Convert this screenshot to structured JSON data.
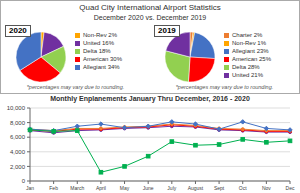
{
  "title": "Quad City International Airport Statistics",
  "subtitle": "December 2020 vs. December 2019",
  "chart_data": [
    {
      "type": "pie",
      "title": "2020",
      "categories": [
        "Non-Rev 2%",
        "United 16%",
        "Delta 18%",
        "American 30%",
        "Allegiant 34%"
      ],
      "values": [
        2,
        16,
        18,
        30,
        34
      ],
      "colors": [
        "#FFA500",
        "#7030A0",
        "#92D050",
        "#FF0000",
        "#4472C4"
      ],
      "annotations": [
        "*percentages may vary due to rounding."
      ]
    },
    {
      "type": "pie",
      "title": "2019",
      "categories": [
        "Charter 2%",
        "Non-Rev 1%",
        "Allegiant 23%",
        "American 25%",
        "Delta 28%",
        "United 21%"
      ],
      "values": [
        2,
        1,
        23,
        25,
        28,
        21
      ],
      "colors": [
        "#ED7D31",
        "#FFA500",
        "#4472C4",
        "#FF0000",
        "#92D050",
        "#7030A0"
      ],
      "annotations": [
        "*percentages may vary due to rounding."
      ]
    },
    {
      "type": "line",
      "title": "Monthly Enplanements January Thru December, 2016 - 2020",
      "categories": [
        "Jan",
        "Feb",
        "March",
        "April",
        "May",
        "June",
        "July",
        "August",
        "Sept",
        "Oct",
        "Nov",
        "Dec"
      ],
      "series": [
        {
          "color": "#7030A0",
          "marker": "circle",
          "values": [
            6900,
            6600,
            6900,
            7000,
            7200,
            7300,
            7500,
            7400,
            7000,
            6900,
            6700,
            6700
          ]
        },
        {
          "color": "#FF0000",
          "marker": "circle",
          "values": [
            7000,
            6800,
            7100,
            7100,
            7300,
            7400,
            7700,
            7500,
            7100,
            7000,
            6800,
            6800
          ]
        },
        {
          "color": "#ED7D31",
          "marker": "circle",
          "values": [
            7100,
            6900,
            7200,
            7200,
            7400,
            7500,
            7800,
            7600,
            7200,
            7100,
            6900,
            6900
          ]
        },
        {
          "color": "#4472C4",
          "marker": "diamond",
          "values": [
            7100,
            6900,
            7500,
            7800,
            7300,
            7500,
            8100,
            7800,
            7100,
            8100,
            7200,
            7000
          ]
        },
        {
          "color": "#00B050",
          "marker": "square",
          "values": [
            7000,
            6800,
            6900,
            1200,
            2000,
            3400,
            5400,
            4900,
            5000,
            5700,
            5300,
            5500
          ]
        }
      ],
      "ylim": [
        0,
        10000
      ],
      "yticks": [
        0,
        {
          "value": 2000,
          "label": "2,000"
        },
        {
          "value": 4000,
          "label": "4,000"
        },
        {
          "value": 6000,
          "label": "6,000"
        },
        {
          "value": 8000,
          "label": "8,000"
        },
        {
          "value": 10000,
          "label": "10,000"
        }
      ],
      "grid": true
    }
  ]
}
